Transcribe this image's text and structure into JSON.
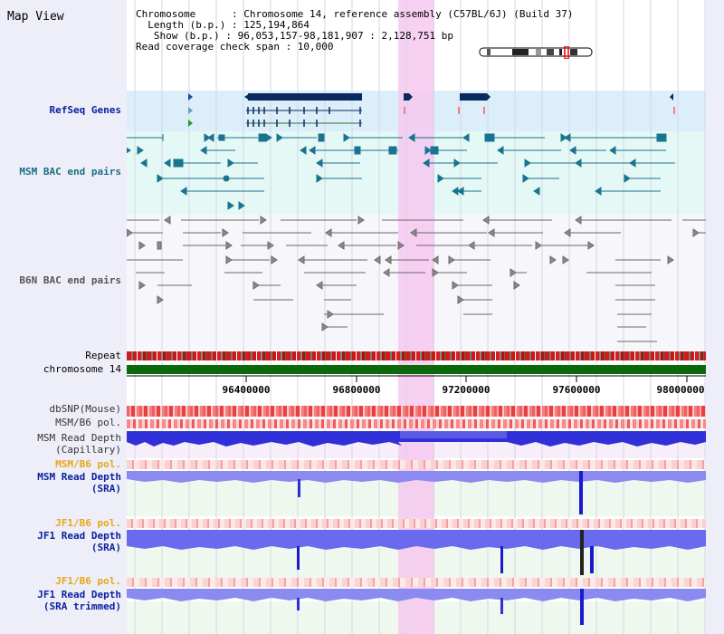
{
  "view": {
    "title": "Map View",
    "info_lines": [
      "Chromosome      : Chromosome 14, reference assembly (C57BL/6J) (Build 37)",
      "  Length (b.p.) : 125,194,864",
      "   Show (b.p.) : 96,053,157-98,181,907 : 2,128,751 bp",
      "Read coverage check span : 10,000"
    ]
  },
  "tracks": {
    "refseq": "RefSeq Genes",
    "msm_bac": "MSM BAC end pairs",
    "b6n_bac": "B6N BAC end pairs",
    "repeat": "Repeat",
    "chromosome": "chromosome 14",
    "dbsnp": "dbSNP(Mouse)",
    "msm_b6_pol_1": "MSM/B6 pol.",
    "msm_depth_cap_1": "MSM Read Depth",
    "msm_depth_cap_2": "(Capillary)",
    "msm_b6_pol_2": "MSM/B6 pol.",
    "msm_depth_sra_1": "MSM Read Depth",
    "msm_depth_sra_2": "(SRA)",
    "jf1_pol_1": "JF1/B6 pol.",
    "jf1_depth_sra_1": "JF1 Read Depth",
    "jf1_depth_sra_2": "(SRA)",
    "jf1_pol_2": "JF1/B6 pol.",
    "jf1_depth_trim_1": "JF1 Read Depth",
    "jf1_depth_trim_2": "(SRA trimmed)"
  },
  "axis": {
    "ticks": [
      "96400000",
      "96800000",
      "97200000",
      "97600000",
      "98000000"
    ]
  },
  "colors": {
    "highlight": "#f6c8f0",
    "refseq_bg": "#dbeefa",
    "msm_bg": "#e4f8f6",
    "gene": "#0a2a5e",
    "msm_feature": "#1a7490",
    "b6n_feature": "#6a6a6a",
    "chromosome": "#0a6a0a",
    "repeat_red": "#d21a1a",
    "snp_red": "#f04848",
    "depth_blue": "#3333dd"
  }
}
